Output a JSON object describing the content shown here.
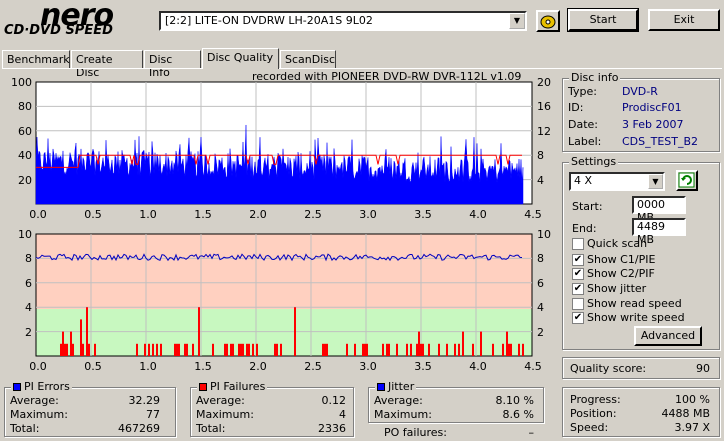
{
  "logo": {
    "main": "nero",
    "sub": "CD·DVD SPEED"
  },
  "toolbar": {
    "drive": "[2:2]   LITE-ON DVDRW LH-20A1S 9L02",
    "start_label": "Start",
    "exit_label": "Exit"
  },
  "tabs": [
    {
      "label": "Benchmark"
    },
    {
      "label": "Create Disc"
    },
    {
      "label": "Disc Info"
    },
    {
      "label": "Disc Quality"
    },
    {
      "label": "ScanDisc"
    }
  ],
  "chart_header": "recorded with PIONEER DVD-RW  DVR-112L v1.09",
  "top_chart": {
    "y_left_ticks": [
      "100",
      "80",
      "60",
      "40",
      "20"
    ],
    "y_right_ticks": [
      "20",
      "16",
      "12",
      "8",
      "4"
    ],
    "x_ticks": [
      "0.0",
      "0.5",
      "1.0",
      "1.5",
      "2.0",
      "2.5",
      "3.0",
      "3.5",
      "4.0",
      "4.5"
    ]
  },
  "bottom_chart": {
    "y_left_ticks": [
      "10",
      "8",
      "6",
      "4",
      "2"
    ],
    "y_right_ticks": [
      "10",
      "8",
      "6",
      "4",
      "2"
    ],
    "x_ticks": [
      "0.0",
      "0.5",
      "1.0",
      "1.5",
      "2.0",
      "2.5",
      "3.0",
      "3.5",
      "4.0",
      "4.5"
    ]
  },
  "chart_data": [
    {
      "type": "bar",
      "title": "recorded with PIONEER DVD-RW  DVR-112L v1.09",
      "series": [
        {
          "name": "PI Errors",
          "color": "#0000ff",
          "approx_level": 35,
          "peak": 77
        },
        {
          "name": "Write speed",
          "color": "#ff0000",
          "type": "line",
          "approx_value_x": 8
        }
      ],
      "xlim": [
        0.0,
        4.5
      ],
      "ylim": [
        0,
        100
      ],
      "y2lim": [
        0,
        20
      ]
    },
    {
      "type": "bar",
      "series": [
        {
          "name": "PI Failures",
          "color": "#ff0000",
          "max": 4
        },
        {
          "name": "Jitter",
          "color": "#0000ff",
          "type": "line",
          "approx_value": 8.1
        }
      ],
      "xlim": [
        0.0,
        4.5
      ],
      "ylim": [
        0,
        10
      ]
    }
  ],
  "disc_info": {
    "title": "Disc info",
    "type_label": "Type:",
    "type": "DVD-R",
    "id_label": "ID:",
    "id": "ProdiscF01",
    "date_label": "Date:",
    "date": "3 Feb 2007",
    "label_label": "Label:",
    "label": "CDS_TEST_B2"
  },
  "settings": {
    "title": "Settings",
    "speed": "4 X",
    "start_label": "Start:",
    "start": "0000 MB",
    "end_label": "End:",
    "end": "4489 MB",
    "quick_scan": "Quick scan",
    "show_c1": "Show C1/PIE",
    "show_c2": "Show C2/PIF",
    "show_jitter": "Show jitter",
    "show_read": "Show read speed",
    "show_write": "Show write speed",
    "advanced": "Advanced"
  },
  "quality": {
    "label": "Quality score:",
    "value": "90"
  },
  "pi_errors": {
    "title": "PI Errors",
    "avg_label": "Average:",
    "avg": "32.29",
    "max_label": "Maximum:",
    "max": "77",
    "total_label": "Total:",
    "total": "467269"
  },
  "pi_failures": {
    "title": "PI Failures",
    "avg_label": "Average:",
    "avg": "0.12",
    "max_label": "Maximum:",
    "max": "4",
    "total_label": "Total:",
    "total": "2336"
  },
  "jitter": {
    "title": "Jitter",
    "avg_label": "Average:",
    "avg": "8.10 %",
    "max_label": "Maximum:",
    "max": "8.6 %",
    "po_label": "PO failures:",
    "po": "–"
  },
  "progress": {
    "progress_label": "Progress:",
    "progress": "100 %",
    "position_label": "Position:",
    "position": "4488 MB",
    "speed_label": "Speed:",
    "speed": "3.97 X"
  }
}
